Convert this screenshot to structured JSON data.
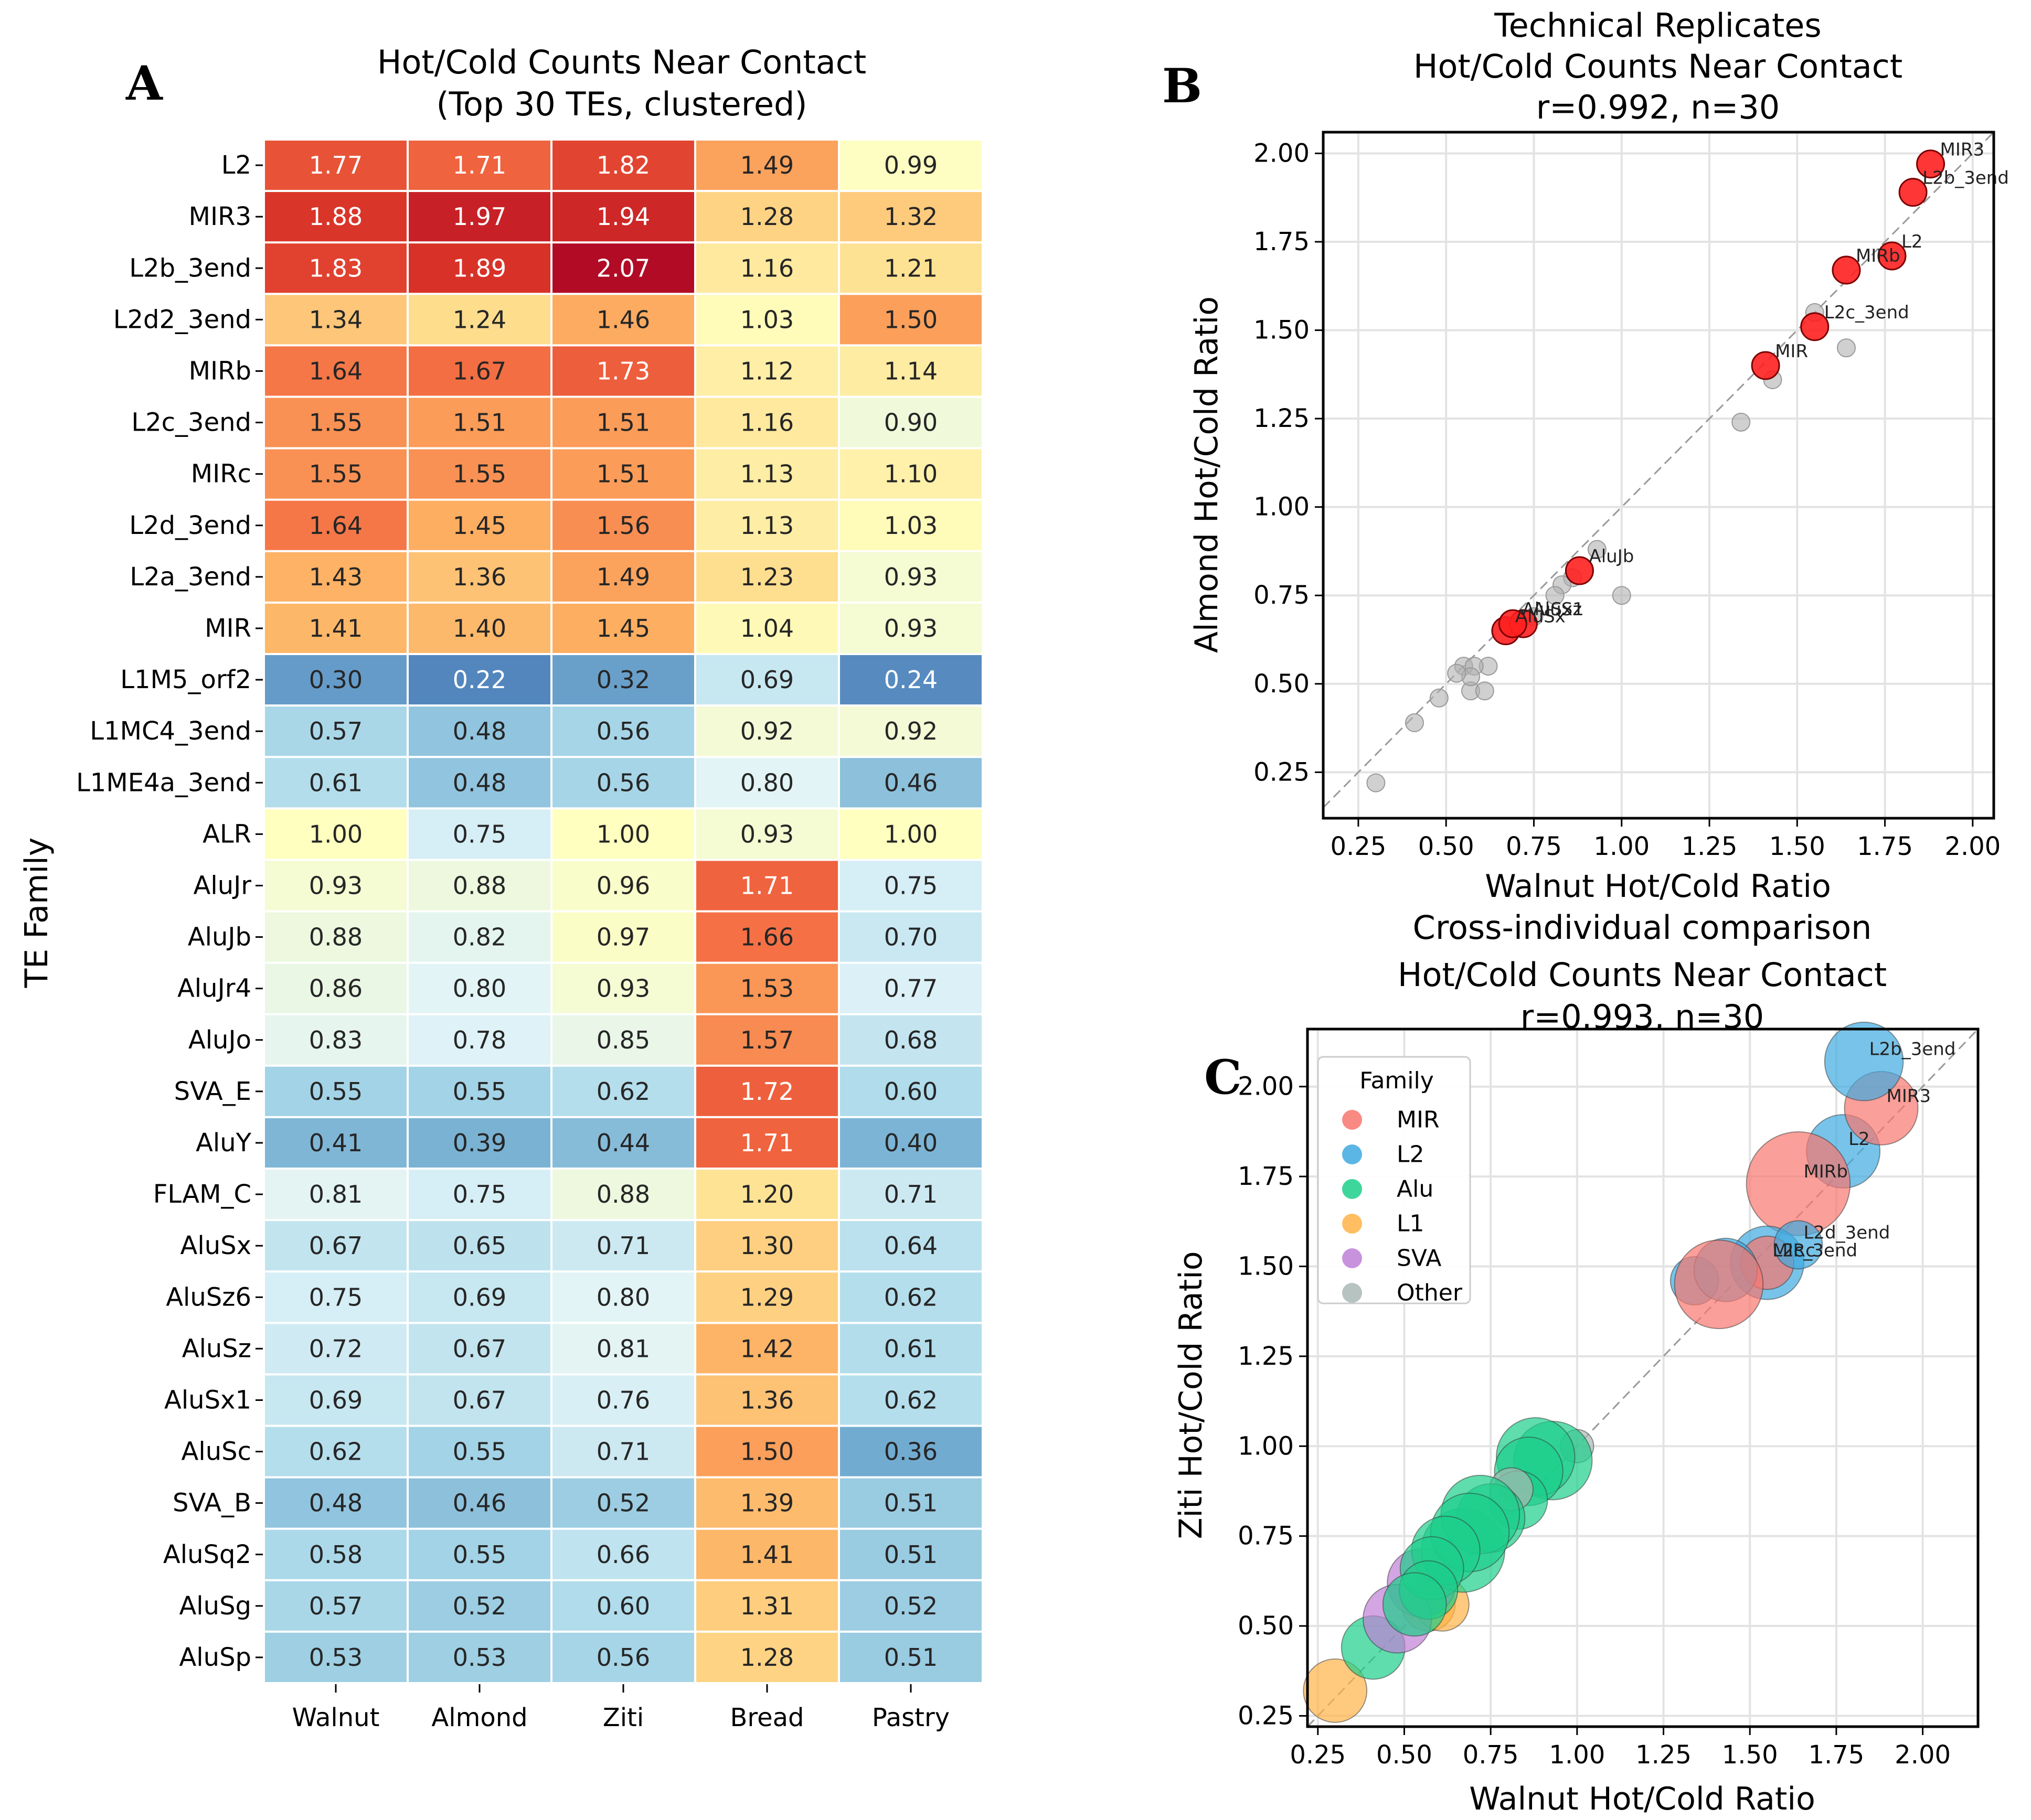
{
  "figure": {
    "panels": [
      "A",
      "B",
      "C"
    ]
  },
  "chart_data": [
    {
      "panel": "A",
      "type": "heatmap",
      "title": "Hot/Cold Counts Near Contact\n(Top 30 TEs, clustered)",
      "title_lines": [
        "Hot/Cold Counts Near Contact",
        "(Top 30 TEs, clustered)"
      ],
      "xlabel": "",
      "ylabel": "TE Family",
      "columns": [
        "Walnut",
        "Almond",
        "Ziti",
        "Bread",
        "Pastry"
      ],
      "rows": [
        "L2",
        "MIR3",
        "L2b_3end",
        "L2d2_3end",
        "MIRb",
        "L2c_3end",
        "MIRc",
        "L2d_3end",
        "L2a_3end",
        "MIR",
        "L1M5_orf2",
        "L1MC4_3end",
        "L1ME4a_3end",
        "ALR",
        "AluJr",
        "AluJb",
        "AluJr4",
        "AluJo",
        "SVA_E",
        "AluY",
        "FLAM_C",
        "AluSx",
        "AluSz6",
        "AluSz",
        "AluSx1",
        "AluSc",
        "SVA_B",
        "AluSq2",
        "AluSg",
        "AluSp"
      ],
      "values": [
        [
          1.77,
          1.71,
          1.82,
          1.49,
          0.99
        ],
        [
          1.88,
          1.97,
          1.94,
          1.28,
          1.32
        ],
        [
          1.83,
          1.89,
          2.07,
          1.16,
          1.21
        ],
        [
          1.34,
          1.24,
          1.46,
          1.03,
          1.5
        ],
        [
          1.64,
          1.67,
          1.73,
          1.12,
          1.14
        ],
        [
          1.55,
          1.51,
          1.51,
          1.16,
          0.9
        ],
        [
          1.55,
          1.55,
          1.51,
          1.13,
          1.1
        ],
        [
          1.64,
          1.45,
          1.56,
          1.13,
          1.03
        ],
        [
          1.43,
          1.36,
          1.49,
          1.23,
          0.93
        ],
        [
          1.41,
          1.4,
          1.45,
          1.04,
          0.93
        ],
        [
          0.3,
          0.22,
          0.32,
          0.69,
          0.24
        ],
        [
          0.57,
          0.48,
          0.56,
          0.92,
          0.92
        ],
        [
          0.61,
          0.48,
          0.56,
          0.8,
          0.46
        ],
        [
          1.0,
          0.75,
          1.0,
          0.93,
          1.0
        ],
        [
          0.93,
          0.88,
          0.96,
          1.71,
          0.75
        ],
        [
          0.88,
          0.82,
          0.97,
          1.66,
          0.7
        ],
        [
          0.86,
          0.8,
          0.93,
          1.53,
          0.77
        ],
        [
          0.83,
          0.78,
          0.85,
          1.57,
          0.68
        ],
        [
          0.55,
          0.55,
          0.62,
          1.72,
          0.6
        ],
        [
          0.41,
          0.39,
          0.44,
          1.71,
          0.4
        ],
        [
          0.81,
          0.75,
          0.88,
          1.2,
          0.71
        ],
        [
          0.67,
          0.65,
          0.71,
          1.3,
          0.64
        ],
        [
          0.75,
          0.69,
          0.8,
          1.29,
          0.62
        ],
        [
          0.72,
          0.67,
          0.81,
          1.42,
          0.61
        ],
        [
          0.69,
          0.67,
          0.76,
          1.36,
          0.62
        ],
        [
          0.62,
          0.55,
          0.71,
          1.5,
          0.36
        ],
        [
          0.48,
          0.46,
          0.52,
          1.39,
          0.51
        ],
        [
          0.58,
          0.55,
          0.66,
          1.41,
          0.51
        ],
        [
          0.57,
          0.52,
          0.6,
          1.31,
          0.52
        ],
        [
          0.53,
          0.53,
          0.56,
          1.28,
          0.51
        ]
      ],
      "colormap": "RdYlBu_r",
      "center": 1.0,
      "vrange": [
        0.2,
        2.1
      ]
    },
    {
      "panel": "B",
      "type": "scatter",
      "title_lines": [
        "Technical Replicates",
        "Hot/Cold Counts Near Contact",
        "r=0.992, n=30"
      ],
      "xlabel": "Walnut Hot/Cold Ratio",
      "ylabel": "Almond Hot/Cold Ratio",
      "xlim": [
        0.15,
        2.06
      ],
      "ylim": [
        0.12,
        2.06
      ],
      "xticks": [
        "0.25",
        "0.50",
        "0.75",
        "1.00",
        "1.25",
        "1.50",
        "1.75",
        "2.00"
      ],
      "yticks": [
        "0.25",
        "0.50",
        "0.75",
        "1.00",
        "1.25",
        "1.50",
        "1.75",
        "2.00"
      ],
      "grid": true,
      "diagonal": "y=x dashed",
      "highlight_color": "#ff2020",
      "other_color": "#b0b0b0",
      "points": [
        {
          "name": "L2",
          "x": 1.77,
          "y": 1.71,
          "highlight": true,
          "label": "L2"
        },
        {
          "name": "MIR3",
          "x": 1.88,
          "y": 1.97,
          "highlight": true,
          "label": "MIR3"
        },
        {
          "name": "L2b_3end",
          "x": 1.83,
          "y": 1.89,
          "highlight": true,
          "label": "L2b_3end"
        },
        {
          "name": "L2d2_3end",
          "x": 1.34,
          "y": 1.24,
          "highlight": false
        },
        {
          "name": "MIRb",
          "x": 1.64,
          "y": 1.67,
          "highlight": true,
          "label": "MIRb"
        },
        {
          "name": "L2c_3end",
          "x": 1.55,
          "y": 1.51,
          "highlight": true,
          "label": "L2c_3end"
        },
        {
          "name": "MIRc",
          "x": 1.55,
          "y": 1.55,
          "highlight": false
        },
        {
          "name": "L2d_3end",
          "x": 1.64,
          "y": 1.45,
          "highlight": false
        },
        {
          "name": "L2a_3end",
          "x": 1.43,
          "y": 1.36,
          "highlight": false
        },
        {
          "name": "MIR",
          "x": 1.41,
          "y": 1.4,
          "highlight": true,
          "label": "MIR"
        },
        {
          "name": "L1M5_orf2",
          "x": 0.3,
          "y": 0.22,
          "highlight": false
        },
        {
          "name": "L1MC4_3end",
          "x": 0.57,
          "y": 0.48,
          "highlight": false
        },
        {
          "name": "L1ME4a_3end",
          "x": 0.61,
          "y": 0.48,
          "highlight": false
        },
        {
          "name": "ALR",
          "x": 1.0,
          "y": 0.75,
          "highlight": false
        },
        {
          "name": "AluJr",
          "x": 0.93,
          "y": 0.88,
          "highlight": false
        },
        {
          "name": "AluJb",
          "x": 0.88,
          "y": 0.82,
          "highlight": true,
          "label": "AluJb"
        },
        {
          "name": "AluJr4",
          "x": 0.86,
          "y": 0.8,
          "highlight": false
        },
        {
          "name": "AluJo",
          "x": 0.83,
          "y": 0.78,
          "highlight": false
        },
        {
          "name": "SVA_E",
          "x": 0.55,
          "y": 0.55,
          "highlight": false
        },
        {
          "name": "AluY",
          "x": 0.41,
          "y": 0.39,
          "highlight": false
        },
        {
          "name": "FLAM_C",
          "x": 0.81,
          "y": 0.75,
          "highlight": false
        },
        {
          "name": "AluSx",
          "x": 0.67,
          "y": 0.65,
          "highlight": true,
          "label": "AluSx"
        },
        {
          "name": "AluSz6",
          "x": 0.75,
          "y": 0.69,
          "highlight": false
        },
        {
          "name": "AluSz",
          "x": 0.72,
          "y": 0.67,
          "highlight": true,
          "label": "AluSz"
        },
        {
          "name": "AluSx1",
          "x": 0.69,
          "y": 0.67,
          "highlight": true,
          "label": "AluSx1"
        },
        {
          "name": "AluSc",
          "x": 0.62,
          "y": 0.55,
          "highlight": false
        },
        {
          "name": "SVA_B",
          "x": 0.48,
          "y": 0.46,
          "highlight": false
        },
        {
          "name": "AluSq2",
          "x": 0.58,
          "y": 0.55,
          "highlight": false
        },
        {
          "name": "AluSg",
          "x": 0.57,
          "y": 0.52,
          "highlight": false
        },
        {
          "name": "AluSp",
          "x": 0.53,
          "y": 0.53,
          "highlight": false
        }
      ]
    },
    {
      "panel": "C",
      "type": "scatter",
      "title_lines": [
        "Cross-individual comparison",
        "Hot/Cold Counts Near Contact",
        "r=0.993, n=30"
      ],
      "xlabel": "Walnut Hot/Cold Ratio",
      "ylabel": "Ziti Hot/Cold Ratio",
      "xlim": [
        0.22,
        2.16
      ],
      "ylim": [
        0.22,
        2.16
      ],
      "xticks": [
        "0.25",
        "0.50",
        "0.75",
        "1.00",
        "1.25",
        "1.50",
        "1.75",
        "2.00"
      ],
      "yticks": [
        "0.25",
        "0.50",
        "0.75",
        "1.00",
        "1.25",
        "1.50",
        "1.75",
        "2.00"
      ],
      "grid": true,
      "diagonal": "y=x dashed",
      "legend": {
        "title": "Family",
        "placement": "top-left",
        "entries": [
          {
            "label": "MIR",
            "color": "#f8766d"
          },
          {
            "label": "L2",
            "color": "#3fa9e0"
          },
          {
            "label": "Alu",
            "color": "#1ccf8a"
          },
          {
            "label": "L1",
            "color": "#ffb347"
          },
          {
            "label": "SVA",
            "color": "#c07fd6"
          },
          {
            "label": "Other",
            "color": "#aab8b5"
          }
        ]
      },
      "points": [
        {
          "name": "L2",
          "x": 1.77,
          "y": 1.82,
          "family": "L2",
          "size": 1.0,
          "label": "L2"
        },
        {
          "name": "MIR3",
          "x": 1.88,
          "y": 1.94,
          "family": "MIR",
          "size": 1.0,
          "label": "MIR3"
        },
        {
          "name": "L2b_3end",
          "x": 1.83,
          "y": 2.07,
          "family": "L2",
          "size": 1.1,
          "label": "L2b_3end"
        },
        {
          "name": "L2d2_3end",
          "x": 1.34,
          "y": 1.46,
          "family": "L2",
          "size": 0.5
        },
        {
          "name": "MIRb",
          "x": 1.64,
          "y": 1.73,
          "family": "MIR",
          "size": 1.6,
          "label": "MIRb"
        },
        {
          "name": "L2c_3end",
          "x": 1.55,
          "y": 1.51,
          "family": "L2",
          "size": 1.0,
          "label": "L2c_3end"
        },
        {
          "name": "MIRc",
          "x": 1.55,
          "y": 1.51,
          "family": "MIR",
          "size": 0.6,
          "label": "MIRc"
        },
        {
          "name": "L2d_3end",
          "x": 1.64,
          "y": 1.56,
          "family": "L2",
          "size": 0.5,
          "label": "L2d_3end"
        },
        {
          "name": "L2a_3end",
          "x": 1.43,
          "y": 1.49,
          "family": "L2",
          "size": 0.8
        },
        {
          "name": "MIR",
          "x": 1.41,
          "y": 1.45,
          "family": "MIR",
          "size": 1.3
        },
        {
          "name": "L1M5_orf2",
          "x": 0.3,
          "y": 0.32,
          "family": "L1",
          "size": 0.8
        },
        {
          "name": "L1MC4_3end",
          "x": 0.57,
          "y": 0.56,
          "family": "L1",
          "size": 0.6
        },
        {
          "name": "L1ME4a_3end",
          "x": 0.61,
          "y": 0.56,
          "family": "L1",
          "size": 0.6
        },
        {
          "name": "ALR",
          "x": 1.0,
          "y": 1.0,
          "family": "Other",
          "size": 0.2
        },
        {
          "name": "AluJr",
          "x": 0.93,
          "y": 0.96,
          "family": "Alu",
          "size": 1.1
        },
        {
          "name": "AluJb",
          "x": 0.88,
          "y": 0.97,
          "family": "Alu",
          "size": 1.1
        },
        {
          "name": "AluJr4",
          "x": 0.86,
          "y": 0.93,
          "family": "Alu",
          "size": 0.9
        },
        {
          "name": "AluJo",
          "x": 0.83,
          "y": 0.85,
          "family": "Alu",
          "size": 0.7
        },
        {
          "name": "SVA_E",
          "x": 0.55,
          "y": 0.62,
          "family": "SVA",
          "size": 0.9
        },
        {
          "name": "AluY",
          "x": 0.41,
          "y": 0.44,
          "family": "Alu",
          "size": 0.8
        },
        {
          "name": "FLAM_C",
          "x": 0.81,
          "y": 0.88,
          "family": "Other",
          "size": 0.4
        },
        {
          "name": "AluSx",
          "x": 0.67,
          "y": 0.71,
          "family": "Alu",
          "size": 1.2
        },
        {
          "name": "AluSz6",
          "x": 0.75,
          "y": 0.8,
          "family": "Alu",
          "size": 0.9
        },
        {
          "name": "AluSz",
          "x": 0.72,
          "y": 0.81,
          "family": "Alu",
          "size": 1.1
        },
        {
          "name": "AluSx1",
          "x": 0.69,
          "y": 0.76,
          "family": "Alu",
          "size": 1.1
        },
        {
          "name": "AluSc",
          "x": 0.62,
          "y": 0.71,
          "family": "Alu",
          "size": 0.9
        },
        {
          "name": "SVA_B",
          "x": 0.48,
          "y": 0.52,
          "family": "SVA",
          "size": 0.9
        },
        {
          "name": "AluSq2",
          "x": 0.58,
          "y": 0.66,
          "family": "Alu",
          "size": 0.8
        },
        {
          "name": "AluSg",
          "x": 0.57,
          "y": 0.6,
          "family": "Alu",
          "size": 0.7
        },
        {
          "name": "AluSp",
          "x": 0.53,
          "y": 0.56,
          "family": "Alu",
          "size": 0.8
        }
      ]
    }
  ]
}
